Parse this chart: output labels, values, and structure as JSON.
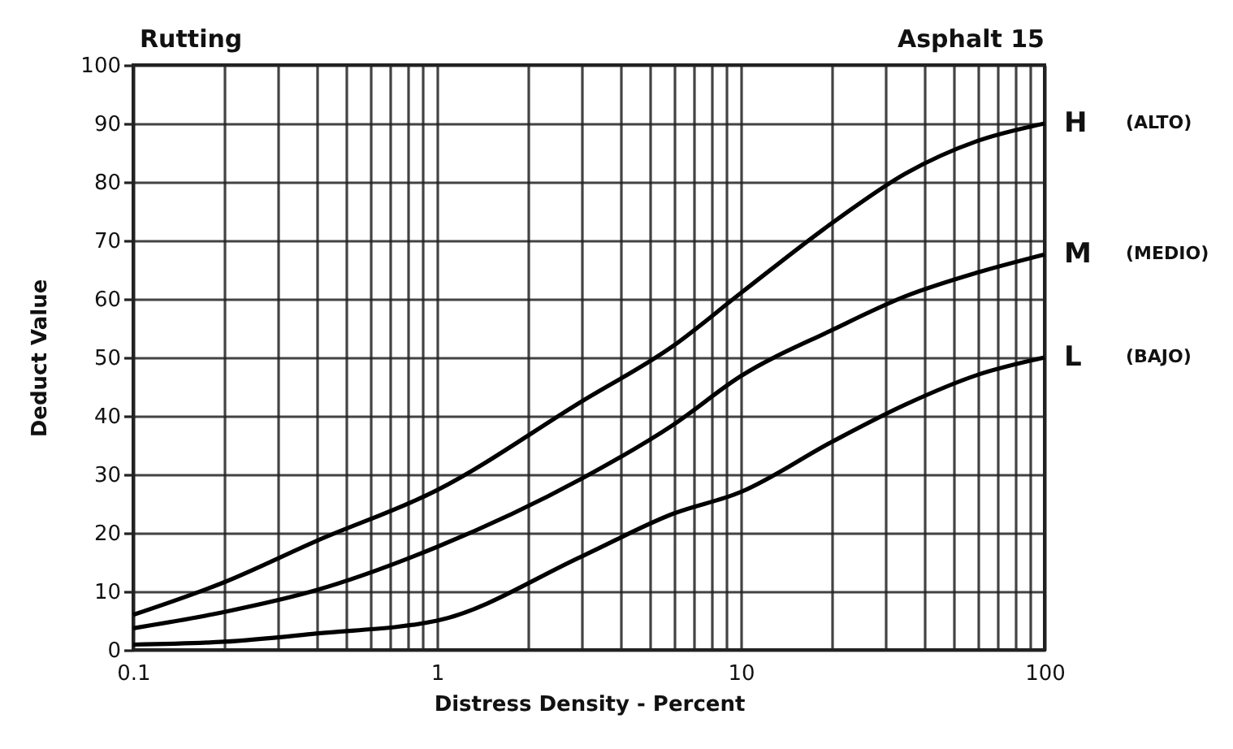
{
  "chart_data": {
    "type": "line",
    "title": "Rutting",
    "subtitle": "Asphalt 15",
    "xlabel": "Distress Density - Percent",
    "ylabel": "Deduct Value",
    "x": [
      0.1,
      0.2,
      0.4,
      1,
      3,
      6,
      10,
      20,
      35,
      60,
      100
    ],
    "series": [
      {
        "name": "H",
        "color": "#000000",
        "values": [
          6,
          11.6,
          18.6,
          27.3,
          42.5,
          52,
          61,
          73,
          81.5,
          87,
          90
        ]
      },
      {
        "name": "M",
        "color": "#000000",
        "values": [
          3.7,
          6.5,
          10.2,
          17.6,
          29.3,
          38.5,
          46.8,
          54.7,
          60.5,
          64.5,
          67.6
        ]
      },
      {
        "name": "L",
        "color": "#000000",
        "values": [
          0.9,
          1.4,
          2.8,
          5,
          16,
          23.3,
          27,
          35.6,
          42,
          47,
          50
        ]
      }
    ],
    "annotations": [
      "(ALTO)",
      "(MEDIO)",
      "(BAJO)"
    ],
    "log": "x",
    "xlim": [
      0.1,
      100
    ],
    "ylim": [
      0,
      100
    ],
    "xticks": [
      0.1,
      {
        "value": 0.2,
        "label": null
      },
      {
        "value": 0.3,
        "label": null
      },
      {
        "value": 0.4,
        "label": null
      },
      {
        "value": 0.5,
        "label": null
      },
      {
        "value": 0.6,
        "label": null
      },
      {
        "value": 0.7,
        "label": null
      },
      {
        "value": 0.8,
        "label": null
      },
      {
        "value": 0.9,
        "label": null
      },
      1,
      {
        "value": 2,
        "label": null
      },
      {
        "value": 3,
        "label": null
      },
      {
        "value": 4,
        "label": null
      },
      {
        "value": 5,
        "label": null
      },
      {
        "value": 6,
        "label": null
      },
      {
        "value": 7,
        "label": null
      },
      {
        "value": 8,
        "label": null
      },
      {
        "value": 9,
        "label": null
      },
      10,
      {
        "value": 20,
        "label": null
      },
      {
        "value": 30,
        "label": null
      },
      {
        "value": 40,
        "label": null
      },
      {
        "value": 50,
        "label": null
      },
      {
        "value": 60,
        "label": null
      },
      {
        "value": 70,
        "label": null
      },
      {
        "value": 80,
        "label": null
      },
      {
        "value": 90,
        "label": null
      },
      100
    ],
    "yticks": [
      0,
      10,
      20,
      30,
      40,
      50,
      60,
      70,
      80,
      90,
      100
    ],
    "grid": true,
    "legend": false,
    "line_style": "solid"
  }
}
